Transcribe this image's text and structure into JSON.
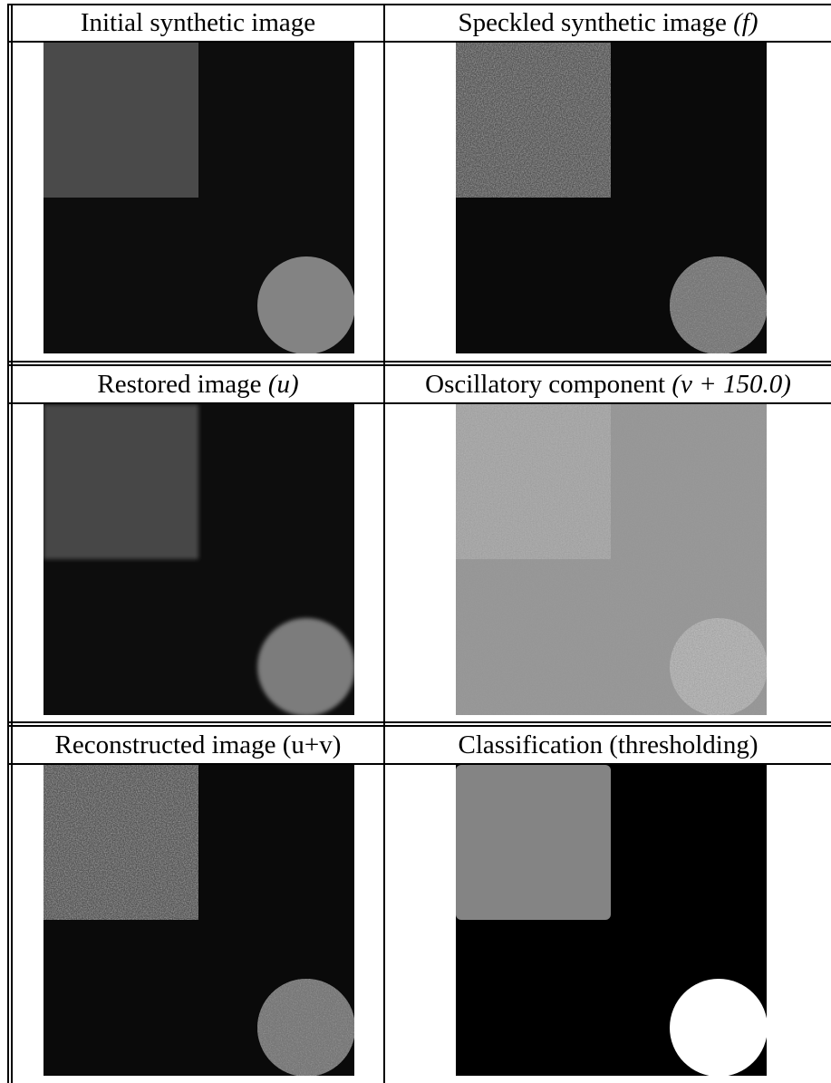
{
  "figure": {
    "panels": [
      {
        "id": "initial",
        "caption_text": "Initial synthetic image",
        "caption_math": "",
        "image": {
          "background": "#0d0d0d",
          "square": "#4a4a4a",
          "circle": "#838383",
          "noise": "none",
          "square_edge": "sharp"
        }
      },
      {
        "id": "speckled",
        "caption_text": "Speckled synthetic image ",
        "caption_math": "(f)",
        "image": {
          "background": "#0a0a0a",
          "square": "#4a4a4a",
          "circle": "#9a9a9a",
          "noise": "speckle",
          "square_edge": "sharp"
        }
      },
      {
        "id": "restored",
        "caption_text": "Restored image ",
        "caption_math": "(u)",
        "image": {
          "background": "#0d0d0d",
          "square": "#474747",
          "circle": "#7c7c7c",
          "noise": "none",
          "square_edge": "soft"
        }
      },
      {
        "id": "oscillatory",
        "caption_text": "Oscillatory component ",
        "caption_math": "(v + 150.0)",
        "image": {
          "background": "#959595",
          "square": "#a0a0a0",
          "circle": "#a8a8a8",
          "noise": "oscillatory",
          "square_edge": "sharp"
        }
      },
      {
        "id": "reconstructed",
        "caption_text": "Reconstructed image (u+v)",
        "caption_math": "",
        "image": {
          "background": "#0a0a0a",
          "square": "#4a4a4a",
          "circle": "#9a9a9a",
          "noise": "speckle",
          "square_edge": "sharp"
        }
      },
      {
        "id": "classification",
        "caption_text": "Classification (thresholding)",
        "caption_math": "",
        "image": {
          "background": "#000000",
          "square": "#848484",
          "circle": "#ffffff",
          "noise": "none",
          "square_edge": "rounded"
        }
      }
    ]
  }
}
